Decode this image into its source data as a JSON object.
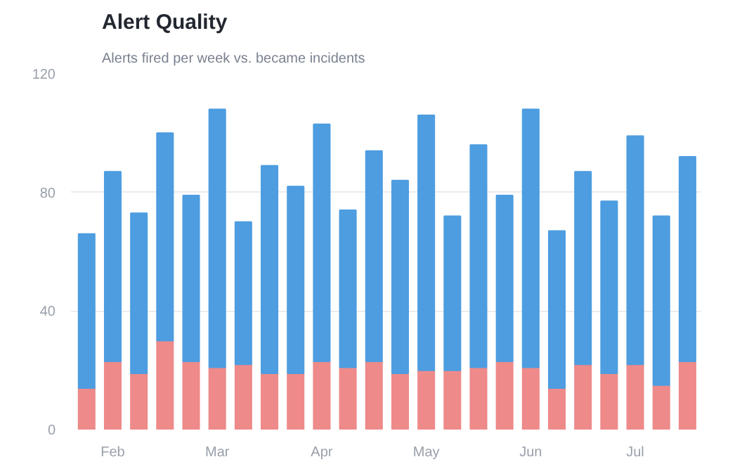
{
  "chart_data": {
    "type": "bar",
    "title": "Alert Quality",
    "subtitle": "Alerts fired per week vs. became incidents",
    "stacked": true,
    "categories": [
      null,
      "Feb",
      null,
      null,
      null,
      "Mar",
      null,
      null,
      null,
      "Apr",
      null,
      null,
      null,
      "May",
      null,
      null,
      null,
      "Jun",
      null,
      null,
      null,
      "Jul",
      null,
      null
    ],
    "series": [
      {
        "color": "#ee8a8a",
        "values": [
          14,
          23,
          19,
          30,
          23,
          21,
          22,
          19,
          19,
          23,
          21,
          23,
          19,
          20,
          20,
          21,
          23,
          21,
          14,
          22,
          19,
          22,
          15,
          23
        ]
      },
      {
        "color": "#4d9de0",
        "values": [
          52,
          64,
          54,
          70,
          56,
          87,
          48,
          70,
          63,
          80,
          53,
          71,
          65,
          86,
          52,
          75,
          56,
          87,
          53,
          65,
          58,
          77,
          57,
          69
        ]
      }
    ],
    "ylim": [
      0,
      120
    ],
    "yticks": [
      0,
      40,
      80,
      120
    ],
    "grid": "y"
  }
}
